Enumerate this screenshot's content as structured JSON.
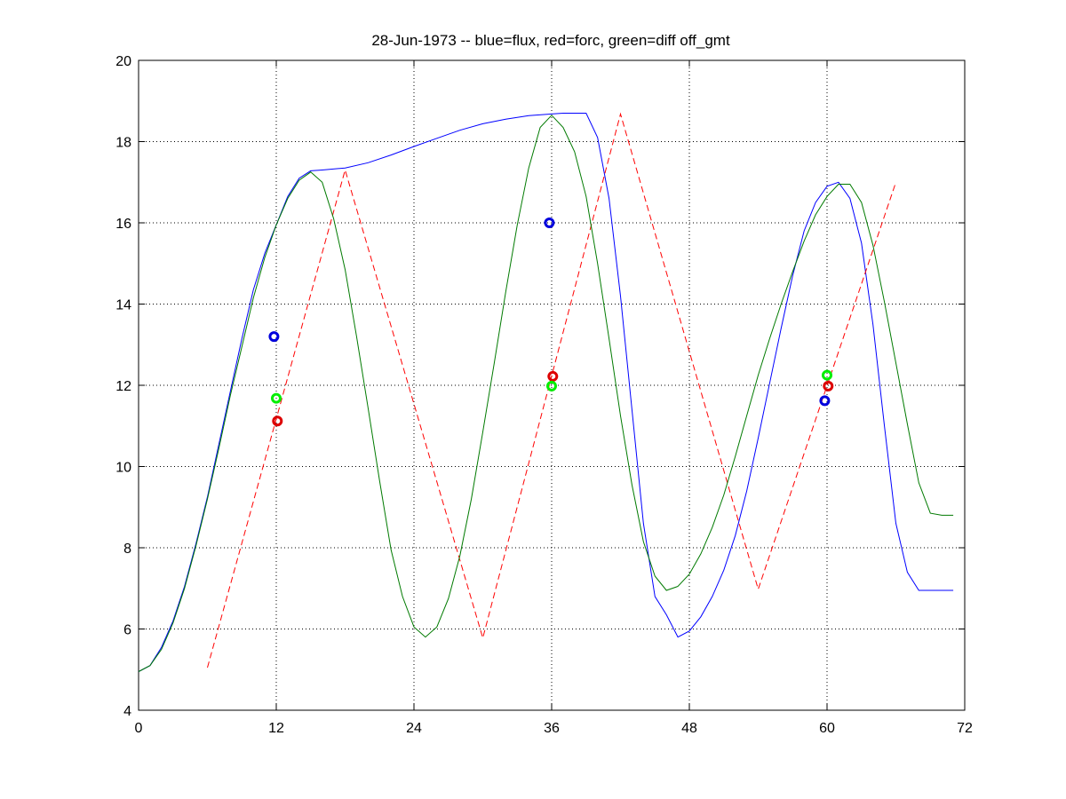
{
  "chart_data": {
    "type": "line",
    "title": "28-Jun-1973 -- blue=flux, red=forc, green=diff off_gmt",
    "xlabel": "",
    "ylabel": "",
    "xlim": [
      0,
      72
    ],
    "ylim": [
      4,
      20
    ],
    "xticks": [
      0,
      12,
      24,
      36,
      48,
      60,
      72
    ],
    "yticks": [
      4,
      6,
      8,
      10,
      12,
      14,
      16,
      18,
      20
    ],
    "grid": true,
    "series": [
      {
        "color": "#0000ff",
        "style": "solid",
        "x": [
          0,
          1,
          2,
          3,
          4,
          5,
          6,
          7,
          8,
          9,
          10,
          11,
          12,
          13,
          14,
          15,
          16,
          18,
          20,
          22,
          24,
          26,
          28,
          30,
          32,
          34,
          36,
          37,
          38,
          39,
          40,
          41,
          42,
          43,
          44,
          45,
          46,
          47,
          48,
          49,
          50,
          51,
          52,
          53,
          54,
          55,
          56,
          57,
          58,
          59,
          60,
          61,
          62,
          63,
          64,
          65,
          66,
          67,
          68,
          69,
          70,
          71
        ],
        "y": [
          4.95,
          5.1,
          5.55,
          6.2,
          7.05,
          8.1,
          9.25,
          10.55,
          11.85,
          13.15,
          14.35,
          15.25,
          15.95,
          16.65,
          17.1,
          17.28,
          17.3,
          17.35,
          17.48,
          17.67,
          17.88,
          18.08,
          18.28,
          18.44,
          18.55,
          18.64,
          18.68,
          18.7,
          18.7,
          18.7,
          18.1,
          16.6,
          14.2,
          11.4,
          8.6,
          6.8,
          6.35,
          5.8,
          5.95,
          6.3,
          6.8,
          7.45,
          8.3,
          9.4,
          10.7,
          12.05,
          13.4,
          14.7,
          15.8,
          16.5,
          16.9,
          17.0,
          16.6,
          15.5,
          13.5,
          11.0,
          8.6,
          7.4,
          6.95,
          6.95,
          6.95,
          6.95
        ]
      },
      {
        "color": "#ff0000",
        "style": "dashed",
        "x": [
          6,
          18,
          30,
          42,
          54,
          66
        ],
        "y": [
          5.05,
          17.3,
          5.78,
          18.68,
          6.98,
          17.0
        ]
      },
      {
        "color": "#007a00",
        "style": "solid",
        "x": [
          0,
          1,
          2,
          3,
          4,
          5,
          6,
          7,
          8,
          9,
          10,
          11,
          12,
          13,
          14,
          15,
          16,
          17,
          18,
          19,
          20,
          21,
          22,
          23,
          24,
          25,
          26,
          27,
          28,
          29,
          30,
          31,
          32,
          33,
          34,
          35,
          36,
          37,
          38,
          39,
          40,
          41,
          42,
          43,
          44,
          45,
          46,
          47,
          48,
          49,
          50,
          51,
          52,
          53,
          54,
          55,
          56,
          57,
          58,
          59,
          60,
          61,
          62,
          63,
          64,
          65,
          66,
          67,
          68,
          69,
          70,
          71
        ],
        "y": [
          4.95,
          5.1,
          5.5,
          6.15,
          7.0,
          8.05,
          9.2,
          10.45,
          11.75,
          12.95,
          14.15,
          15.15,
          15.95,
          16.6,
          17.05,
          17.25,
          17.0,
          16.1,
          14.85,
          13.2,
          11.45,
          9.65,
          7.95,
          6.8,
          6.05,
          5.8,
          6.05,
          6.75,
          7.8,
          9.2,
          10.85,
          12.55,
          14.3,
          15.95,
          17.35,
          18.35,
          18.65,
          18.35,
          17.75,
          16.65,
          15.0,
          13.15,
          11.25,
          9.55,
          8.15,
          7.3,
          6.95,
          7.05,
          7.35,
          7.85,
          8.5,
          9.3,
          10.25,
          11.25,
          12.25,
          13.15,
          14.0,
          14.8,
          15.55,
          16.2,
          16.65,
          16.95,
          16.95,
          16.5,
          15.45,
          14.05,
          12.55,
          11.05,
          9.6,
          8.85,
          8.8,
          8.8
        ]
      }
    ],
    "markers": [
      {
        "color": "#0000dd",
        "x": 11.8,
        "y": 13.2
      },
      {
        "color": "#00ee00",
        "x": 12.0,
        "y": 11.68
      },
      {
        "color": "#dd0000",
        "x": 12.1,
        "y": 11.12
      },
      {
        "color": "#0000dd",
        "x": 35.8,
        "y": 16.0
      },
      {
        "color": "#dd0000",
        "x": 36.1,
        "y": 12.22
      },
      {
        "color": "#00ee00",
        "x": 36.0,
        "y": 11.98
      },
      {
        "color": "#00ee00",
        "x": 60.0,
        "y": 12.25
      },
      {
        "color": "#dd0000",
        "x": 60.1,
        "y": 11.98
      },
      {
        "color": "#0000dd",
        "x": 59.8,
        "y": 11.62
      }
    ]
  }
}
